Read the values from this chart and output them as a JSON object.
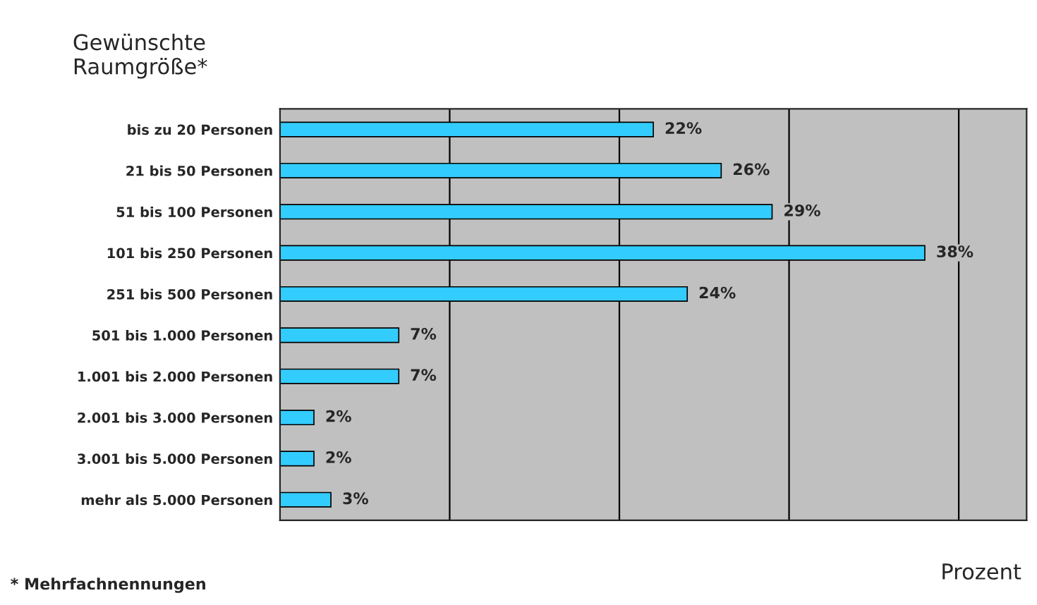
{
  "chart_data": {
    "type": "bar",
    "orientation": "horizontal",
    "ylabel": "Gewünschte\nRaumgröße*",
    "xlabel": "Prozent",
    "annotations": [
      "* Mehrfachnennungen"
    ],
    "categories": [
      "bis zu 20 Personen",
      "21 bis 50 Personen",
      "51 bis 100 Personen",
      "101 bis 250 Personen",
      "251 bis 500 Personen",
      "501 bis 1.000 Personen",
      "1.001 bis 2.000 Personen",
      "2.001 bis 3.000 Personen",
      "3.001 bis 5.000 Personen",
      "mehr als 5.000 Personen"
    ],
    "values": [
      22,
      26,
      29,
      38,
      24,
      7,
      7,
      2,
      2,
      3
    ],
    "value_labels": [
      "22%",
      "26%",
      "29%",
      "38%",
      "24%",
      "7%",
      "7%",
      "2%",
      "2%",
      "3%"
    ],
    "color": "#33ccff",
    "xlim": [
      0,
      44
    ],
    "xticks": [
      {
        "value": 0,
        "label": null
      },
      {
        "value": 10,
        "label": null
      },
      {
        "value": 20,
        "label": null
      },
      {
        "value": 30,
        "label": null
      },
      {
        "value": 40,
        "label": null
      }
    ],
    "grid": "x",
    "tick_labels": "y",
    "legend": false
  }
}
